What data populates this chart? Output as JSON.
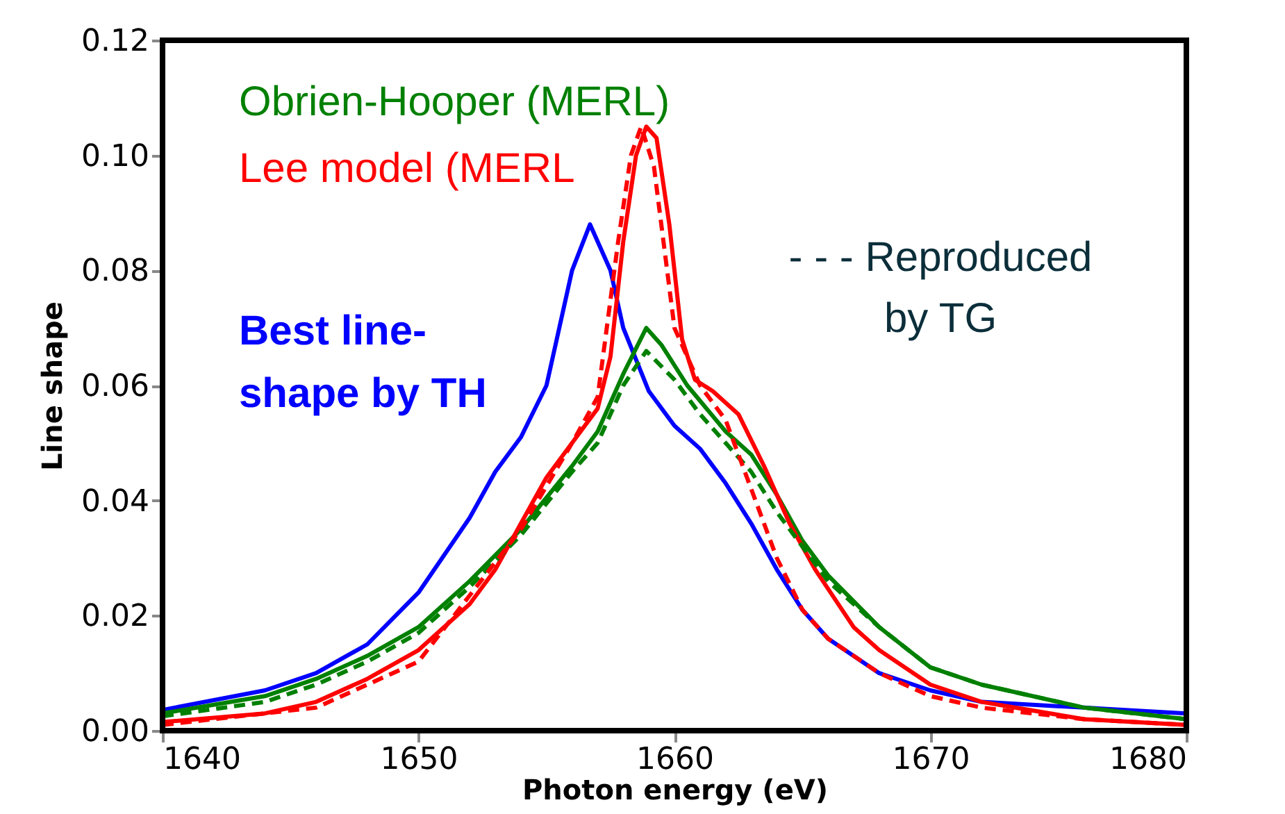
{
  "chart_data": {
    "type": "line",
    "xlabel": "Photon energy (eV)",
    "ylabel": "Line shape",
    "xlim": [
      1640,
      1680
    ],
    "xticks": [
      1640,
      1650,
      1660,
      1670,
      1680
    ],
    "ylim": [
      0,
      0.12
    ],
    "yticks": [
      {
        "value": 0,
        "label": "0.00"
      },
      {
        "value": 0.02,
        "label": "0.02"
      },
      {
        "value": 0.04,
        "label": "0.04"
      },
      {
        "value": 0.06,
        "label": "0.06"
      },
      {
        "value": 0.08,
        "label": "0.08"
      },
      {
        "value": 0.1,
        "label": "0.10"
      },
      {
        "value": 0.12,
        "label": "0.12"
      }
    ],
    "grid": false,
    "legend": false,
    "marker": "none",
    "series": [
      {
        "name": "Best line-shape by TH",
        "color": "#0000ff",
        "line_style": "solid",
        "x": [
          1640,
          1644,
          1646,
          1648,
          1650,
          1652,
          1653,
          1654,
          1655,
          1656,
          1656.7,
          1657.5,
          1658,
          1659,
          1660,
          1661,
          1662,
          1663,
          1664,
          1665,
          1666,
          1668,
          1670,
          1672,
          1676,
          1680
        ],
        "values": [
          0.0036,
          0.007,
          0.01,
          0.015,
          0.024,
          0.037,
          0.045,
          0.051,
          0.06,
          0.08,
          0.088,
          0.08,
          0.07,
          0.059,
          0.053,
          0.049,
          0.043,
          0.036,
          0.028,
          0.021,
          0.016,
          0.01,
          0.007,
          0.005,
          0.004,
          0.003
        ]
      },
      {
        "name": "Obrien-Hooper (MERL)",
        "color": "#008000",
        "line_style": "solid",
        "x": [
          1640,
          1644,
          1646,
          1648,
          1650,
          1652,
          1654,
          1656,
          1657,
          1658,
          1658.9,
          1659.5,
          1660.5,
          1662,
          1663,
          1664,
          1665,
          1666,
          1668,
          1670,
          1672,
          1676,
          1680
        ],
        "values": [
          0.003,
          0.006,
          0.009,
          0.013,
          0.018,
          0.026,
          0.035,
          0.046,
          0.052,
          0.062,
          0.07,
          0.067,
          0.06,
          0.052,
          0.048,
          0.041,
          0.033,
          0.027,
          0.018,
          0.011,
          0.008,
          0.004,
          0.002
        ]
      },
      {
        "name": "Lee model (MERL",
        "color": "#ff0000",
        "line_style": "solid",
        "x": [
          1640,
          1644,
          1646,
          1648,
          1650,
          1652,
          1653,
          1654,
          1655,
          1656,
          1657,
          1657.5,
          1658,
          1658.5,
          1658.9,
          1659.3,
          1659.8,
          1660.3,
          1660.8,
          1661.5,
          1662.5,
          1663.5,
          1664.5,
          1665.5,
          1667,
          1668,
          1670,
          1672,
          1676,
          1680
        ],
        "values": [
          0.0015,
          0.003,
          0.005,
          0.009,
          0.014,
          0.022,
          0.028,
          0.036,
          0.044,
          0.05,
          0.056,
          0.065,
          0.085,
          0.1,
          0.105,
          0.103,
          0.088,
          0.068,
          0.061,
          0.059,
          0.055,
          0.046,
          0.036,
          0.028,
          0.018,
          0.014,
          0.008,
          0.005,
          0.002,
          0.001
        ]
      },
      {
        "color": "#008000",
        "line_style": "dashed",
        "x": [
          1640,
          1644,
          1646,
          1648,
          1650,
          1652,
          1654,
          1656,
          1657,
          1658,
          1658.9,
          1660,
          1661,
          1662,
          1663,
          1664,
          1665,
          1666,
          1668,
          1670,
          1672,
          1676,
          1680
        ],
        "values": [
          0.0025,
          0.005,
          0.008,
          0.012,
          0.017,
          0.025,
          0.034,
          0.045,
          0.05,
          0.06,
          0.066,
          0.061,
          0.055,
          0.05,
          0.045,
          0.038,
          0.032,
          0.026,
          0.018,
          0.011,
          0.008,
          0.004,
          0.002
        ]
      },
      {
        "color": "#ff0000",
        "line_style": "dashed",
        "x": [
          1640,
          1646,
          1650,
          1654,
          1656,
          1657,
          1657.8,
          1658.3,
          1658.7,
          1659.2,
          1660,
          1661,
          1662,
          1663,
          1664,
          1665,
          1666,
          1668,
          1670,
          1672,
          1676,
          1680
        ],
        "values": [
          0.001,
          0.004,
          0.012,
          0.035,
          0.05,
          0.058,
          0.085,
          0.1,
          0.105,
          0.098,
          0.07,
          0.06,
          0.054,
          0.042,
          0.03,
          0.021,
          0.016,
          0.01,
          0.006,
          0.004,
          0.002,
          0.001
        ]
      }
    ],
    "annotations": [
      "- - - Reproduced by TG"
    ]
  }
}
